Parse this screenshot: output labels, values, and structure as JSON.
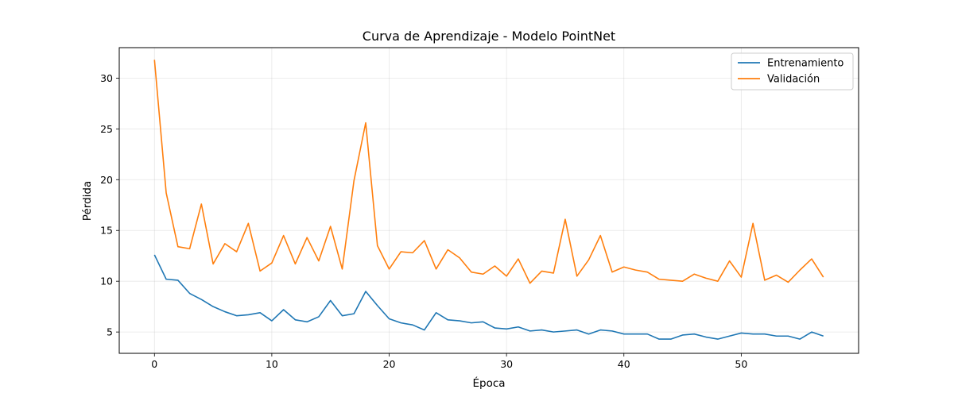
{
  "chart_data": {
    "type": "line",
    "title": "Curva de Aprendizaje - Modelo PointNet",
    "xlabel": "Época",
    "ylabel": "Pérdida",
    "xlim": [
      -3,
      60
    ],
    "ylim": [
      2.9,
      33.0
    ],
    "xticks": [
      0,
      10,
      20,
      30,
      40,
      50
    ],
    "yticks": [
      5,
      10,
      15,
      20,
      25,
      30
    ],
    "grid": true,
    "legend": "top-right",
    "x": [
      0,
      1,
      2,
      3,
      4,
      5,
      6,
      7,
      8,
      9,
      10,
      11,
      12,
      13,
      14,
      15,
      16,
      17,
      18,
      19,
      20,
      21,
      22,
      23,
      24,
      25,
      26,
      27,
      28,
      29,
      30,
      31,
      32,
      33,
      34,
      35,
      36,
      37,
      38,
      39,
      40,
      41,
      42,
      43,
      44,
      45,
      46,
      47,
      48,
      49,
      50,
      51,
      52,
      53,
      54,
      55,
      56,
      57
    ],
    "series": [
      {
        "name": "Entrenamiento",
        "color": "#1f77b4",
        "values": [
          12.6,
          10.2,
          10.1,
          8.8,
          8.2,
          7.5,
          7.0,
          6.6,
          6.7,
          6.9,
          6.1,
          7.2,
          6.2,
          6.0,
          6.5,
          8.1,
          6.6,
          6.8,
          9.0,
          7.6,
          6.3,
          5.9,
          5.7,
          5.2,
          6.9,
          6.2,
          6.1,
          5.9,
          6.0,
          5.4,
          5.3,
          5.5,
          5.1,
          5.2,
          5.0,
          5.1,
          5.2,
          4.8,
          5.2,
          5.1,
          4.8,
          4.8,
          4.8,
          4.3,
          4.3,
          4.7,
          4.8,
          4.5,
          4.3,
          4.6,
          4.9,
          4.8,
          4.8,
          4.6,
          4.6,
          4.3,
          5.0,
          4.6
        ]
      },
      {
        "name": "Validación",
        "color": "#ff7f0e",
        "values": [
          31.8,
          18.7,
          13.4,
          13.2,
          17.6,
          11.7,
          13.7,
          12.9,
          15.7,
          11.0,
          11.8,
          14.5,
          11.7,
          14.3,
          12.0,
          15.4,
          11.2,
          19.9,
          25.6,
          13.5,
          11.2,
          12.9,
          12.8,
          14.0,
          11.2,
          13.1,
          12.3,
          10.9,
          10.7,
          11.5,
          10.5,
          12.2,
          9.8,
          11.0,
          10.8,
          16.1,
          10.5,
          12.1,
          14.5,
          10.9,
          11.4,
          11.1,
          10.9,
          10.2,
          10.1,
          10.0,
          10.7,
          10.3,
          10.0,
          12.0,
          10.4,
          15.7,
          10.1,
          10.6,
          9.9,
          11.1,
          12.2,
          10.4
        ]
      }
    ]
  }
}
